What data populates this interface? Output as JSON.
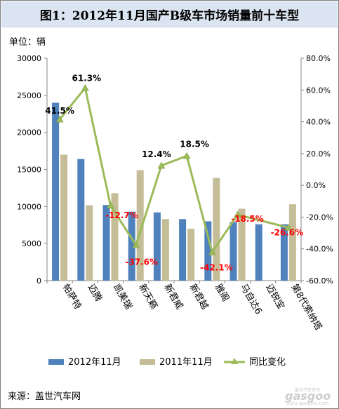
{
  "title": "图1：2012年11月国产B级车市场销量前十车型",
  "unit_label": "单位：辆",
  "source": "来源：盖世汽车网",
  "watermark": {
    "top_text": "盖世汽车资讯",
    "brand": "gasgoo",
    "site": "auto.gasgoo.com"
  },
  "chart_data": {
    "type": "bar",
    "categories": [
      "帕萨特",
      "迈腾",
      "凯美瑞",
      "新天籁",
      "新君威",
      "新君越",
      "雅阁",
      "马自达6",
      "迈锐宝",
      "第8代索纳塔"
    ],
    "series": [
      {
        "name": "2012年11月",
        "kind": "bar",
        "color": "#4f81bd",
        "axis": "left",
        "values": [
          24000,
          16400,
          10200,
          9300,
          9200,
          8300,
          8000,
          7900,
          7600,
          7600
        ]
      },
      {
        "name": "2011年11月",
        "kind": "bar",
        "color": "#c4bd97",
        "axis": "left",
        "values": [
          17000,
          10150,
          11800,
          14900,
          8300,
          7000,
          13850,
          9700,
          0,
          10300
        ]
      },
      {
        "name": "同比变化",
        "kind": "line",
        "color": "#9bbb59",
        "axis": "right",
        "values": [
          41.5,
          61.3,
          -12.7,
          -37.6,
          12.4,
          18.5,
          -42.1,
          -18.5,
          null,
          -26.6
        ],
        "labels": [
          "41.5%",
          "61.3%",
          "-12.7%",
          "-37.6%",
          "12.4%",
          "18.5%",
          "-42.1%",
          "-18.5%",
          "",
          "-26.6%"
        ]
      }
    ],
    "y_left": {
      "min": 0,
      "max": 30000,
      "ticks": [
        "0",
        "5000",
        "10000",
        "15000",
        "20000",
        "25000",
        "30000"
      ]
    },
    "y_right": {
      "min": -60,
      "max": 80,
      "ticks": [
        "-60.0%",
        "-40.0%",
        "-20.0%",
        "0.0%",
        "20.0%",
        "40.0%",
        "60.0%",
        "80.0%"
      ]
    },
    "grid": false,
    "legend_position": "bottom",
    "positive_label_color": "#000000",
    "negative_label_color": "#ff0000"
  }
}
